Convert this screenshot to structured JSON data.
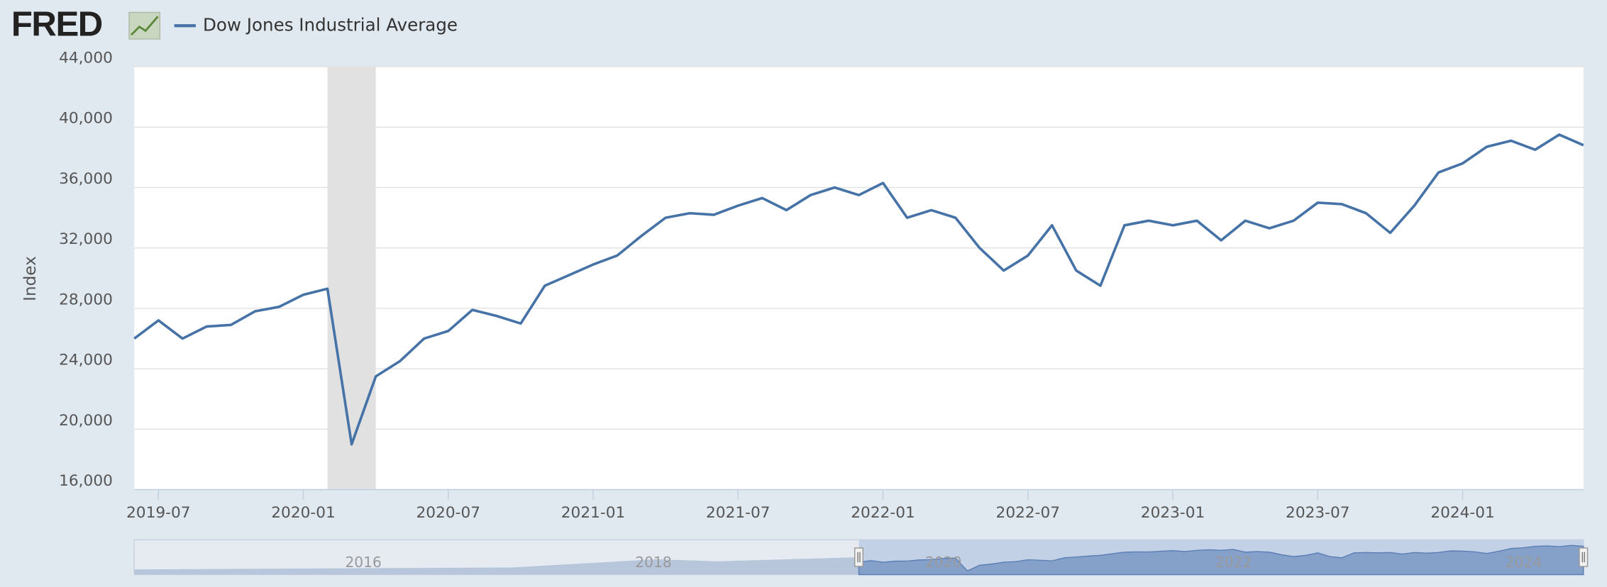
{
  "logo": "FRED",
  "chart_data": {
    "type": "line",
    "y_label": "Index",
    "x": [
      "2019-06",
      "2019-07",
      "2019-08",
      "2019-09",
      "2019-10",
      "2019-11",
      "2019-12",
      "2020-01",
      "2020-02",
      "2020-03",
      "2020-04",
      "2020-05",
      "2020-06",
      "2020-07",
      "2020-08",
      "2020-09",
      "2020-10",
      "2020-11",
      "2020-12",
      "2021-01",
      "2021-02",
      "2021-03",
      "2021-04",
      "2021-05",
      "2021-06",
      "2021-07",
      "2021-08",
      "2021-09",
      "2021-10",
      "2021-11",
      "2021-12",
      "2022-01",
      "2022-02",
      "2022-03",
      "2022-04",
      "2022-05",
      "2022-06",
      "2022-07",
      "2022-08",
      "2022-09",
      "2022-10",
      "2022-11",
      "2022-12",
      "2023-01",
      "2023-02",
      "2023-03",
      "2023-04",
      "2023-05",
      "2023-06",
      "2023-07",
      "2023-08",
      "2023-09",
      "2023-10",
      "2023-11",
      "2023-12",
      "2024-01",
      "2024-02",
      "2024-03",
      "2024-04",
      "2024-05",
      "2024-06"
    ],
    "series": [
      {
        "name": "Dow Jones Industrial Average",
        "color": "#4572a7",
        "values": [
          26000,
          27200,
          26000,
          26800,
          26900,
          27800,
          28100,
          28900,
          29300,
          19000,
          23500,
          24500,
          26000,
          26500,
          27900,
          27500,
          27000,
          29500,
          30200,
          30900,
          31500,
          32800,
          34000,
          34300,
          34200,
          34800,
          35300,
          34500,
          35500,
          36000,
          35500,
          36300,
          34000,
          34500,
          34000,
          32000,
          30500,
          31500,
          33500,
          30500,
          29500,
          33500,
          33800,
          33500,
          33800,
          32500,
          33800,
          33300,
          33800,
          35000,
          34900,
          34300,
          33000,
          34800,
          37000,
          37600,
          38700,
          39100,
          38500,
          39500,
          38800
        ]
      }
    ],
    "xlim": [
      "2019-06",
      "2024-06"
    ],
    "xticks": [
      "2019-07",
      "2020-01",
      "2020-07",
      "2021-01",
      "2021-07",
      "2022-01",
      "2022-07",
      "2023-01",
      "2023-07",
      "2024-01"
    ],
    "ylim": [
      16000,
      44000
    ],
    "yticks": [
      {
        "value": 16000,
        "label": "16,000"
      },
      {
        "value": 20000,
        "label": "20,000"
      },
      {
        "value": 24000,
        "label": "24,000"
      },
      {
        "value": 28000,
        "label": "28,000"
      },
      {
        "value": 32000,
        "label": "32,000"
      },
      {
        "value": 36000,
        "label": "36,000"
      },
      {
        "value": 40000,
        "label": "40,000"
      },
      {
        "value": 44000,
        "label": "44,000"
      }
    ],
    "grid": true,
    "recession": [
      "2020-02",
      "2020-04"
    ],
    "navigator": {
      "labels": [
        "2016",
        "2018",
        "2020",
        "2022",
        "2024"
      ]
    }
  }
}
